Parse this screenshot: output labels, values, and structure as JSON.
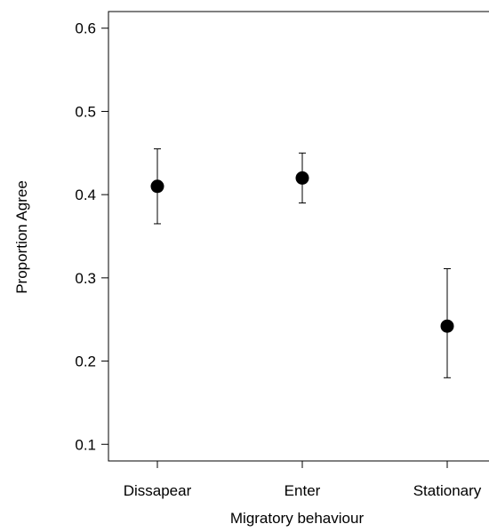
{
  "chart_data": {
    "type": "scatter",
    "title": "",
    "xlabel": "Migratory behaviour",
    "ylabel": "Proportion Agree",
    "categories": [
      "Dissapear",
      "Enter",
      "Stationary"
    ],
    "series": [
      {
        "values": [
          0.41,
          0.42,
          0.242
        ],
        "error_low": [
          0.365,
          0.39,
          0.18
        ],
        "error_high": [
          0.455,
          0.45,
          0.311
        ]
      }
    ],
    "ylim": [
      0.08,
      0.62
    ],
    "y_ticks": [
      0.1,
      0.2,
      0.3,
      0.4,
      0.5,
      0.6
    ],
    "y_tick_labels": [
      "0.1",
      "0.2",
      "0.3",
      "0.4",
      "0.5",
      "0.6"
    ],
    "grid": false,
    "legend": "none",
    "colors": {
      "point": "#000000",
      "axis": "#000000",
      "background": "#ffffff"
    }
  }
}
